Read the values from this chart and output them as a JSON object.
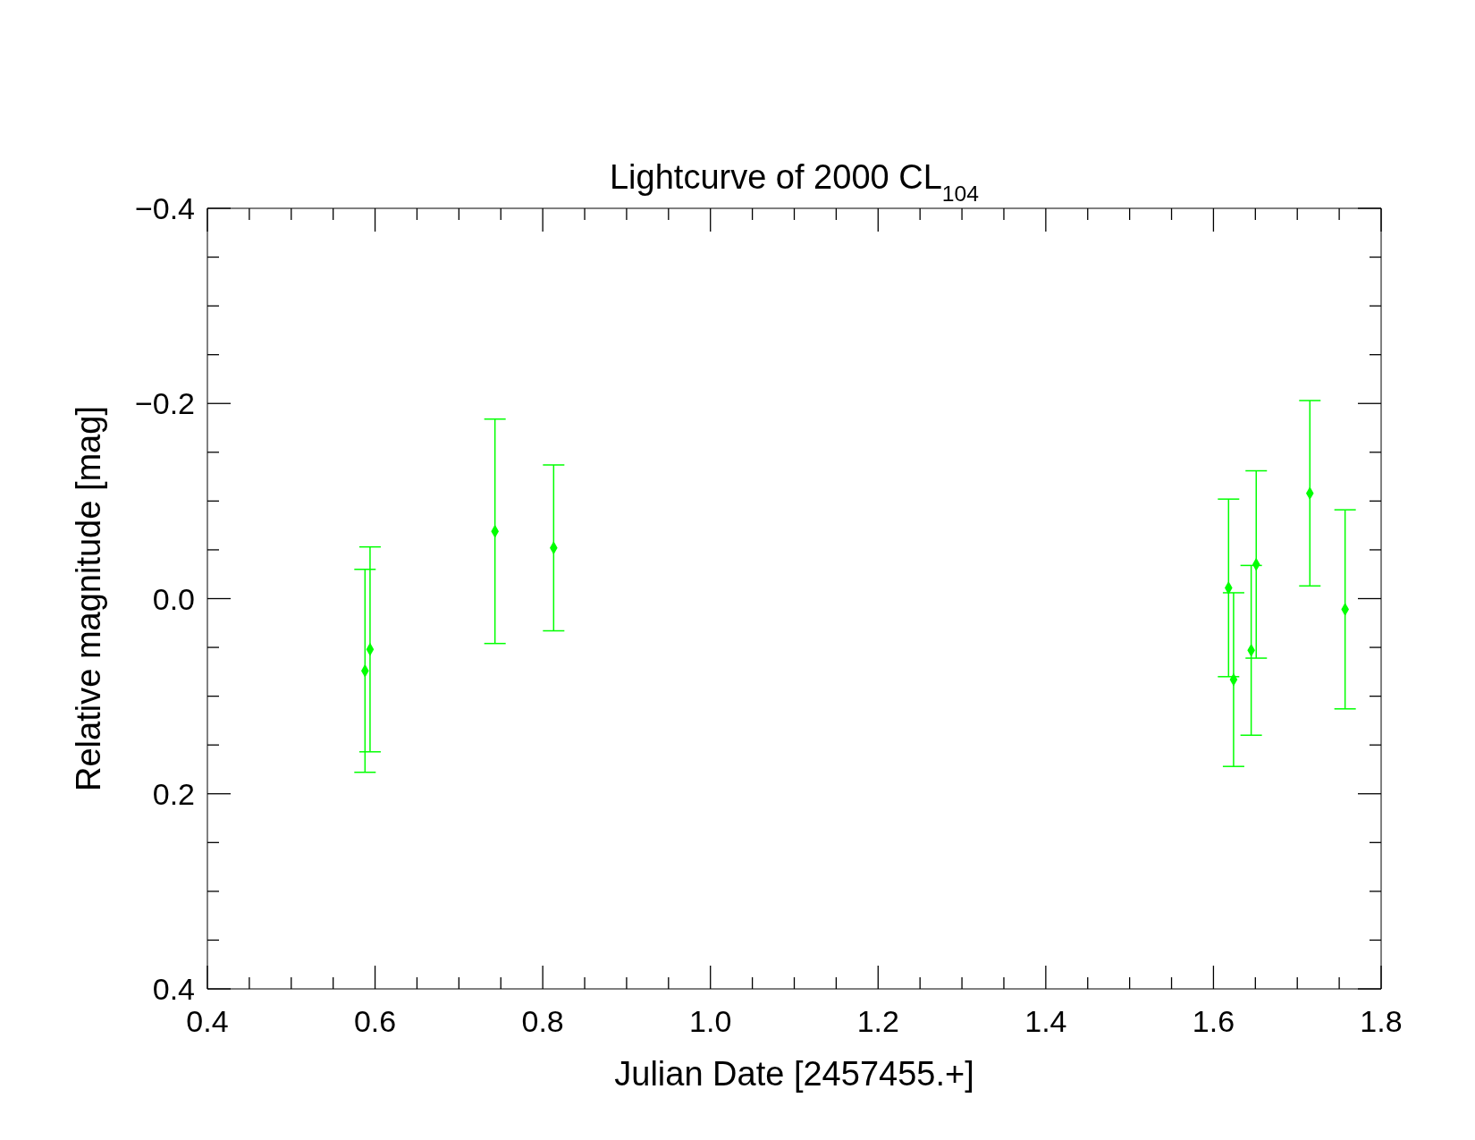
{
  "chart_data": {
    "type": "scatter",
    "title": "Lightcurve of 2000 CL$_{104}$",
    "xlabel": "Julian Date [2457455.+]",
    "ylabel": "Relative magnitude [mag]",
    "x": [
      0.588,
      0.594,
      0.743,
      0.813,
      1.618,
      1.624,
      1.645,
      1.651,
      1.715,
      1.757
    ],
    "series": [
      {
        "color": "#00ff00",
        "values": [
          0.074,
          0.052,
          -0.069,
          -0.052,
          -0.011,
          0.083,
          0.053,
          -0.035,
          -0.108,
          0.011
        ],
        "errors": [
          0.104,
          0.105,
          0.115,
          0.085,
          0.091,
          0.089,
          0.087,
          0.096,
          0.095,
          0.102
        ]
      }
    ],
    "marker": "diamond",
    "xlim": [
      0.4,
      1.8
    ],
    "ylim": [
      0.4,
      -0.4
    ],
    "xticks": [
      0.4,
      {
        "value": 0.45,
        "label": null
      },
      {
        "value": 0.5,
        "label": null
      },
      {
        "value": 0.55,
        "label": null
      },
      0.6,
      {
        "value": 0.65,
        "label": null
      },
      {
        "value": 0.7,
        "label": null
      },
      {
        "value": 0.75,
        "label": null
      },
      0.8,
      {
        "value": 0.85,
        "label": null
      },
      {
        "value": 0.9,
        "label": null
      },
      {
        "value": 0.95,
        "label": null
      },
      {
        "value": 1,
        "label": "1.0"
      },
      {
        "value": 1.05,
        "label": null
      },
      {
        "value": 1.1,
        "label": null
      },
      {
        "value": 1.15,
        "label": null
      },
      1.2,
      {
        "value": 1.25,
        "label": null
      },
      {
        "value": 1.3,
        "label": null
      },
      {
        "value": 1.35,
        "label": null
      },
      1.4,
      {
        "value": 1.45,
        "label": null
      },
      {
        "value": 1.5,
        "label": null
      },
      {
        "value": 1.55,
        "label": null
      },
      1.6,
      {
        "value": 1.65,
        "label": null
      },
      {
        "value": 1.7,
        "label": null
      },
      {
        "value": 1.75,
        "label": null
      },
      1.8
    ],
    "yticks": [
      {
        "value": -0.4,
        "label": "−0.4"
      },
      {
        "value": -0.35,
        "label": null
      },
      {
        "value": -0.3,
        "label": null
      },
      {
        "value": -0.25,
        "label": null
      },
      {
        "value": -0.2,
        "label": "−0.2"
      },
      {
        "value": -0.15,
        "label": null
      },
      {
        "value": -0.1,
        "label": null
      },
      {
        "value": -0.05,
        "label": null
      },
      {
        "value": 0,
        "label": "0.0"
      },
      {
        "value": 0.05,
        "label": null
      },
      {
        "value": 0.1,
        "label": null
      },
      {
        "value": 0.15,
        "label": null
      },
      0.2,
      {
        "value": 0.25,
        "label": null
      },
      {
        "value": 0.3,
        "label": null
      },
      {
        "value": 0.35,
        "label": null
      },
      0.4
    ],
    "tick_labels": true
  }
}
